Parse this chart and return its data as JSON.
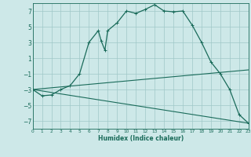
{
  "xlabel": "Humidex (Indice chaleur)",
  "background_color": "#cde8e8",
  "grid_color": "#a0c8c8",
  "line_color": "#1a6b5a",
  "xlim": [
    0,
    23
  ],
  "ylim": [
    -8,
    8
  ],
  "yticks": [
    -7,
    -5,
    -3,
    -1,
    1,
    3,
    5,
    7
  ],
  "xticks": [
    0,
    1,
    2,
    3,
    4,
    5,
    6,
    7,
    8,
    9,
    10,
    11,
    12,
    13,
    14,
    15,
    16,
    17,
    18,
    19,
    20,
    21,
    22,
    23
  ],
  "main_curve_x": [
    0,
    1,
    2,
    3,
    4,
    5,
    6,
    7,
    7.3,
    7.7,
    8,
    9,
    10,
    11,
    12,
    13,
    14,
    15,
    16,
    17,
    18,
    19,
    20,
    21,
    22,
    23
  ],
  "main_curve_y": [
    -3,
    -3.8,
    -3.7,
    -3,
    -2.5,
    -1,
    3,
    4.5,
    3.2,
    2.0,
    4.5,
    5.5,
    7,
    6.7,
    7.2,
    7.8,
    7.0,
    6.9,
    7.0,
    5.2,
    3.0,
    0.5,
    -1.0,
    -3.0,
    -6.2,
    -7.3
  ],
  "line1_x": [
    0,
    23
  ],
  "line1_y": [
    -3,
    -0.5
  ],
  "line2_x": [
    0,
    23
  ],
  "line2_y": [
    -3,
    -7.3
  ],
  "figsize": [
    3.2,
    2.0
  ],
  "dpi": 100
}
